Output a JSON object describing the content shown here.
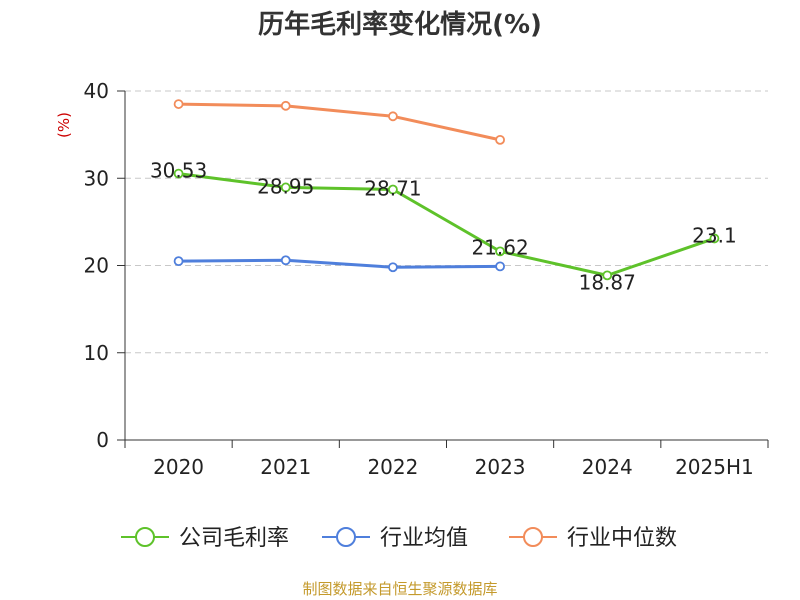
{
  "chart_data": {
    "type": "line",
    "title": "历年毛利率变化情况(%)",
    "ylabel": "(%)",
    "xlabel": "",
    "categories": [
      "2020",
      "2021",
      "2022",
      "2023",
      "2024",
      "2025H1"
    ],
    "ylim": [
      0,
      40
    ],
    "yticks": [
      0,
      10,
      20,
      30,
      40
    ],
    "grid": true,
    "legend_position": "bottom",
    "series": [
      {
        "name": "公司毛利率",
        "color": "#5ec22a",
        "values": [
          30.53,
          28.95,
          28.71,
          21.62,
          18.87,
          23.1
        ],
        "labels": [
          "30.53",
          "28.95",
          "28.71",
          "21.62",
          "18.87",
          "23.1"
        ]
      },
      {
        "name": "行业均值",
        "color": "#4f7fdc",
        "values": [
          20.5,
          20.6,
          19.8,
          19.9,
          null,
          null
        ],
        "labels": []
      },
      {
        "name": "行业中位数",
        "color": "#f28c5a",
        "values": [
          38.5,
          38.3,
          37.1,
          34.4,
          null,
          null
        ],
        "labels": []
      }
    ]
  },
  "source": {
    "text": "制图数据来自恒生聚源数据库",
    "color": "#c49a2c"
  },
  "ylabel_color": "#cc0000"
}
